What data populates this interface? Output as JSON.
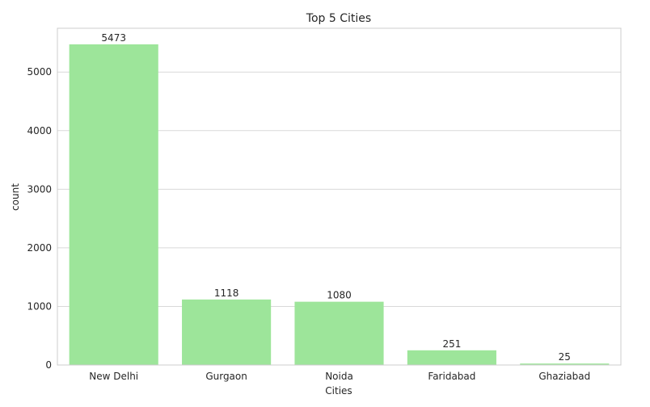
{
  "chart_data": {
    "type": "bar",
    "title": "Top 5 Cities",
    "xlabel": "Cities",
    "ylabel": "count",
    "categories": [
      "New Delhi",
      "Gurgaon",
      "Noida",
      "Faridabad",
      "Ghaziabad"
    ],
    "values": [
      5473,
      1118,
      1080,
      251,
      25
    ],
    "data_labels": [
      "5473",
      "1118",
      "1080",
      "251",
      "25"
    ],
    "yticks": [
      0,
      1000,
      2000,
      3000,
      4000,
      5000
    ],
    "ytick_labels": [
      "0",
      "1000",
      "2000",
      "3000",
      "4000",
      "5000"
    ],
    "ylim": [
      0,
      5747
    ],
    "grid": "horizontal",
    "legend": "none",
    "colors": {
      "bar": "#9de59a",
      "grid": "#d9d9d9",
      "frame": "#cccccc",
      "text": "#262626",
      "background": "#ffffff"
    }
  }
}
